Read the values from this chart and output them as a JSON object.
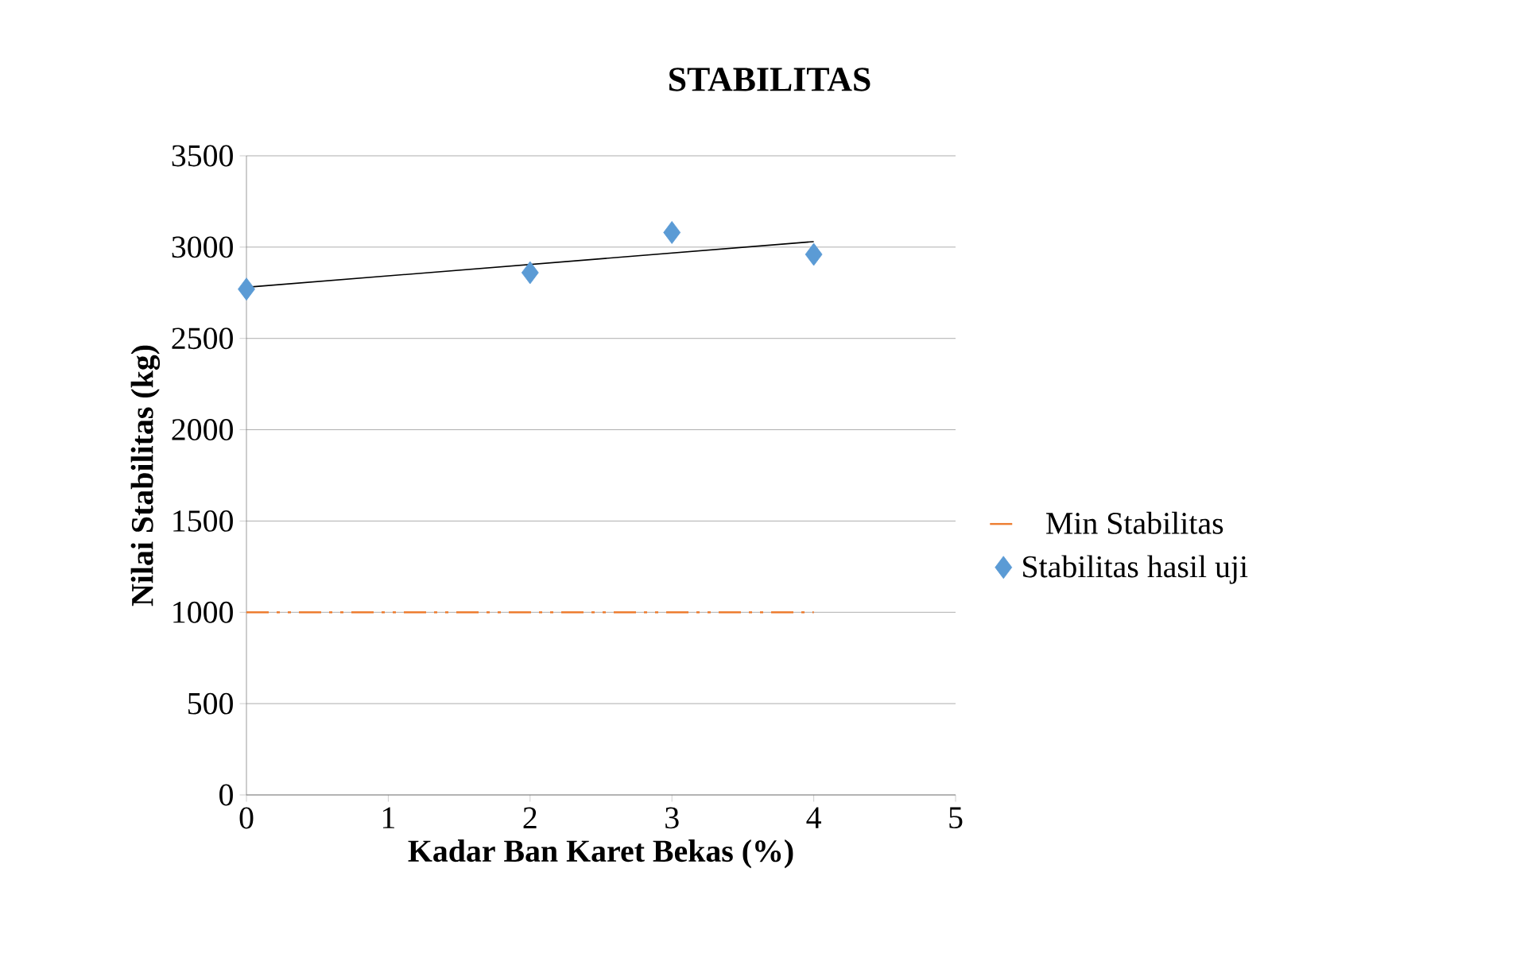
{
  "chart_data": {
    "type": "scatter",
    "title": "STABILITAS",
    "xlabel": "Kadar Ban Karet Bekas  (%)",
    "ylabel": "Nilai Stabilitas (kg)",
    "xlim": [
      0,
      5
    ],
    "xticks": [
      0,
      1,
      2,
      3,
      4,
      5
    ],
    "ylim": [
      0,
      3500
    ],
    "yticks": [
      0,
      500,
      1000,
      1500,
      2000,
      2500,
      3000,
      3500
    ],
    "grid": "y",
    "legend": "right",
    "series": [
      {
        "name": "Min Stabilitas",
        "type": "line",
        "color": "#ed7d31",
        "x": [
          0,
          4
        ],
        "values": [
          1000,
          1000
        ],
        "line_style": "dashed",
        "marker": "none"
      },
      {
        "name": "Stabilitas hasil uji",
        "color": "#5b9bd5",
        "x": [
          0,
          2,
          3,
          4
        ],
        "values": [
          2770,
          2860,
          3080,
          2960
        ],
        "marker": "diamond"
      },
      {
        "type": "line",
        "color": "#000000",
        "x": [
          0,
          4
        ],
        "values": [
          2780,
          3030
        ],
        "line_style": "solid",
        "marker": "none"
      }
    ]
  }
}
